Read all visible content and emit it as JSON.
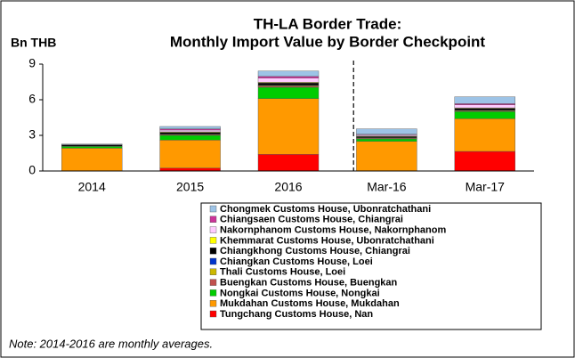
{
  "chart_data": {
    "type": "stacked_bar",
    "title": [
      "TH-LA Border Trade:",
      "Monthly Import Value by Border Checkpoint"
    ],
    "y_label": "Bn THB",
    "note": "Note: 2014-2016 are monthly averages.",
    "categories": [
      "2014",
      "2015",
      "2016",
      "Mar-16",
      "Mar-17"
    ],
    "ylim": [
      0,
      9
    ],
    "yticks": [
      0,
      3,
      6,
      9
    ],
    "series": [
      {
        "name": "Tungchang Customs House, Nan",
        "color": "#ff0000",
        "values": [
          0.02,
          0.25,
          1.4,
          0.02,
          1.65
        ]
      },
      {
        "name": "Mukdahan Customs House, Mukdahan",
        "color": "#ff9900",
        "values": [
          1.9,
          2.35,
          4.7,
          2.48,
          2.75
        ]
      },
      {
        "name": "Nongkai Customs House, Nongkai",
        "color": "#00cc00",
        "values": [
          0.15,
          0.4,
          0.95,
          0.2,
          0.6
        ]
      },
      {
        "name": "Buengkan Customs House, Buengkan",
        "color": "#c0504d",
        "values": [
          0,
          0.05,
          0.1,
          0.05,
          0.05
        ]
      },
      {
        "name": "Thali Customs House, Loei",
        "color": "#ccb800",
        "values": [
          0.02,
          0.05,
          0.05,
          0.05,
          0.05
        ]
      },
      {
        "name": "Chiangkan Customs House, Loei",
        "color": "#0033cc",
        "values": [
          0,
          0,
          0.02,
          0,
          0.02
        ]
      },
      {
        "name": "Chiangkhong Customs House, Chiangrai",
        "color": "#000000",
        "values": [
          0.1,
          0.15,
          0.2,
          0.1,
          0.15
        ]
      },
      {
        "name": "Khemmarat Customs House, Ubonratchathani",
        "color": "#ffff00",
        "values": [
          0,
          0.05,
          0.05,
          0.05,
          0.05
        ]
      },
      {
        "name": "Nakornphanom Customs House, Nakornphanom",
        "color": "#ffccff",
        "values": [
          0.03,
          0.15,
          0.35,
          0.1,
          0.25
        ]
      },
      {
        "name": "Chiangsaen Customs House, Chiangrai",
        "color": "#cc3399",
        "values": [
          0,
          0.1,
          0.15,
          0.05,
          0.1
        ]
      },
      {
        "name": "Chongmek Customs House, Ubonratchathani",
        "color": "#9dc3e6",
        "values": [
          0.05,
          0.2,
          0.45,
          0.45,
          0.58
        ]
      }
    ]
  }
}
